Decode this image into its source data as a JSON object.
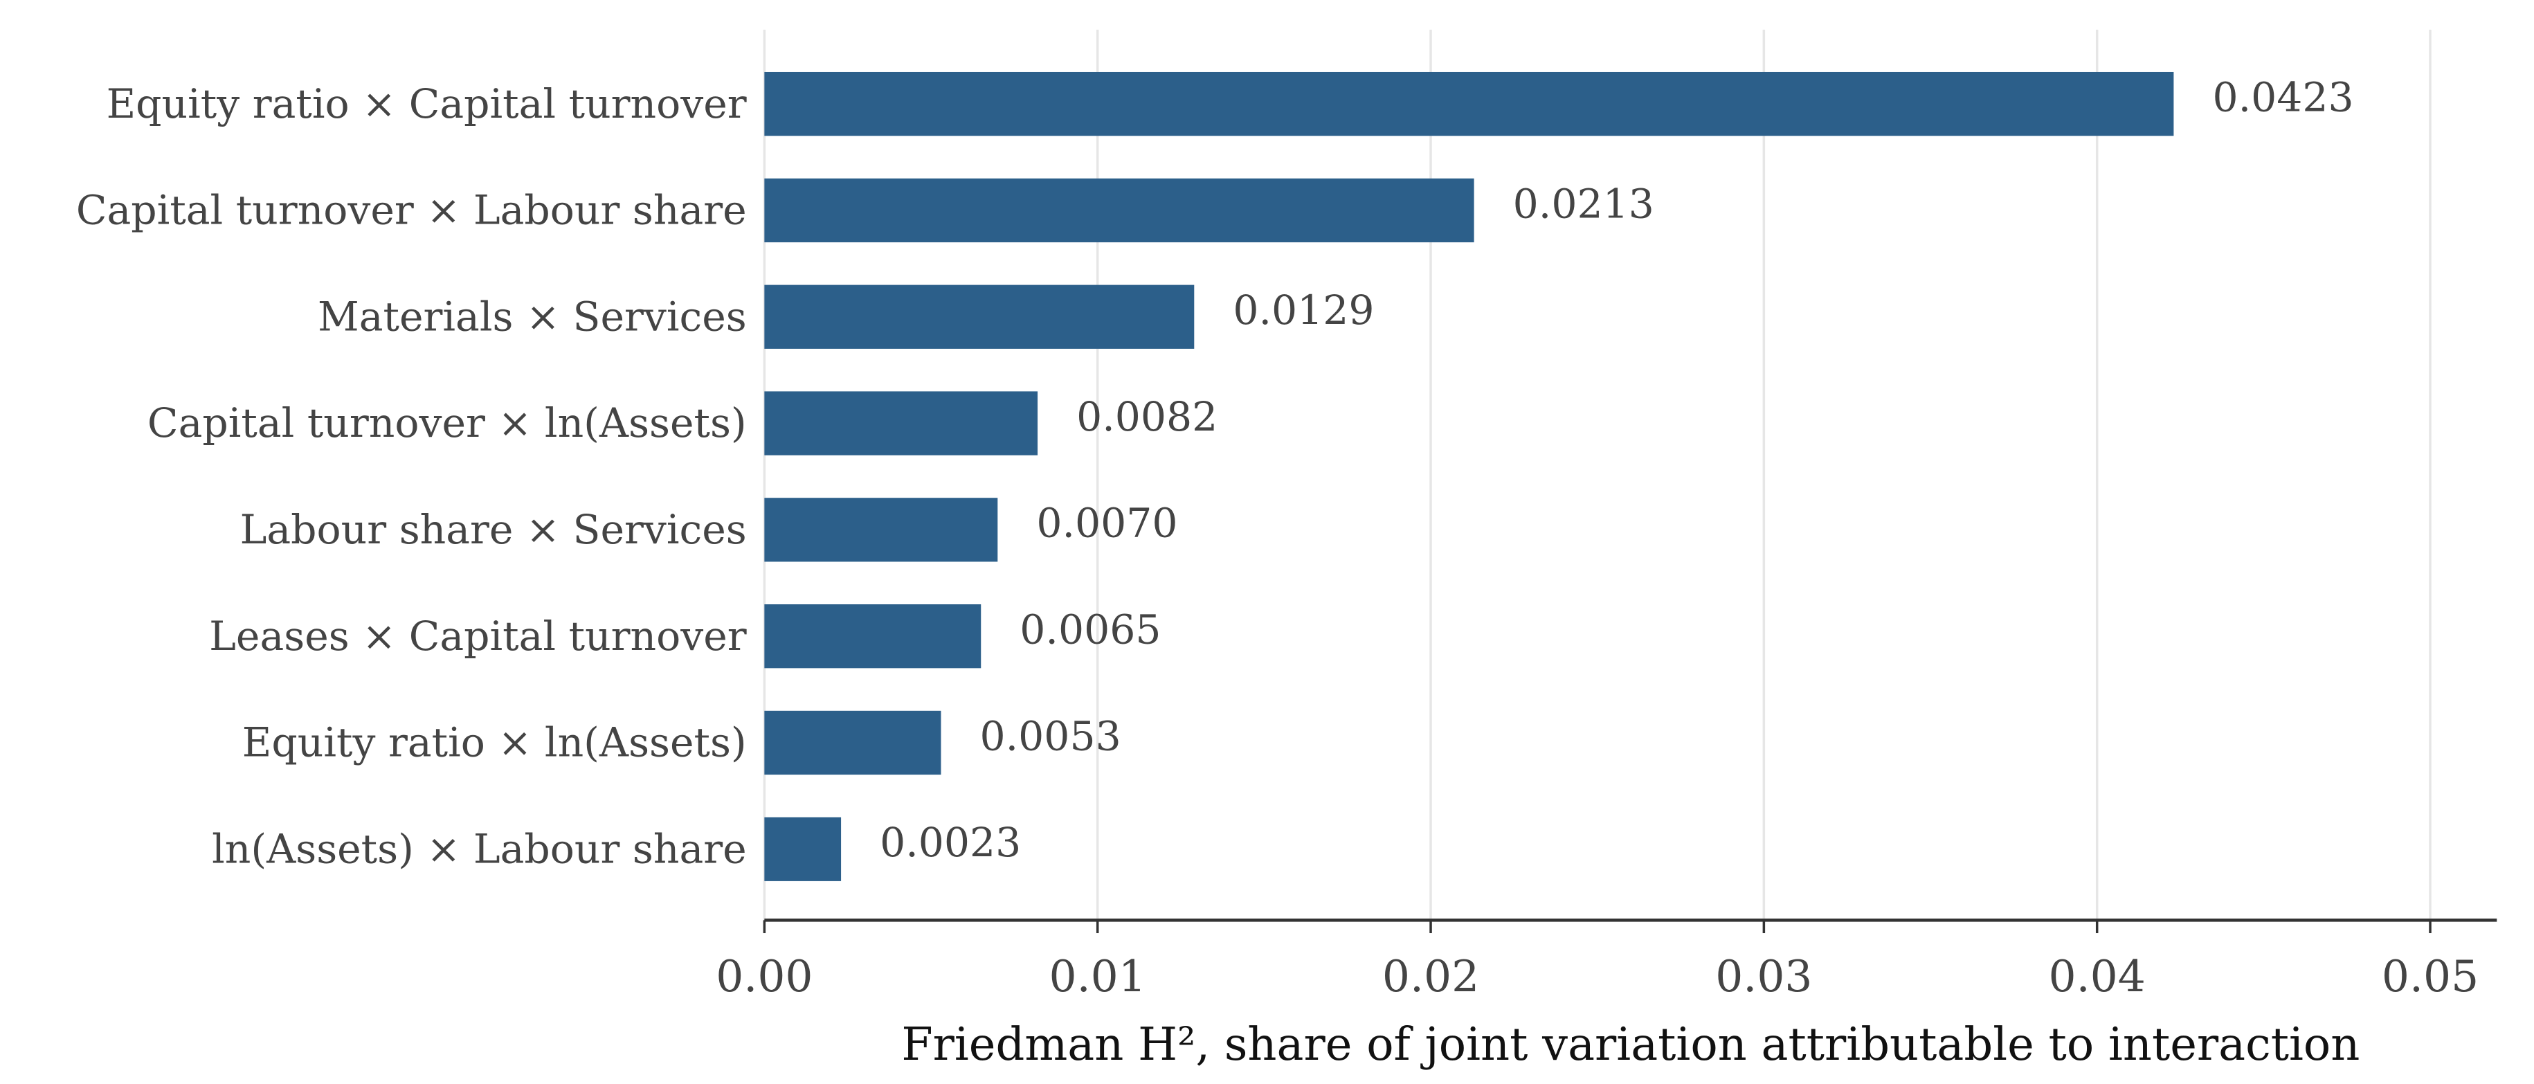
{
  "chart_data": {
    "type": "barh",
    "xlabel": "Friedman H², share of joint variation attributable to interaction",
    "categories": [
      "Equity ratio × Capital turnover",
      "Capital turnover × Labour share",
      "Materials × Services",
      "Capital turnover × ln(Assets)",
      "Labour share × Services",
      "Leases × Capital turnover",
      "Equity ratio × ln(Assets)",
      "ln(Assets) × Labour share"
    ],
    "values": [
      0.0423,
      0.0213,
      0.0129,
      0.0082,
      0.007,
      0.0065,
      0.0053,
      0.0023
    ],
    "value_labels": [
      "0.0423",
      "0.0213",
      "0.0129",
      "0.0082",
      "0.0070",
      "0.0065",
      "0.0053",
      "0.0023"
    ],
    "color": "#2c5f8a",
    "xlim": [
      0,
      0.052
    ],
    "xticks": [
      {
        "value": 0,
        "label": "0.00"
      },
      {
        "value": 0.01,
        "label": "0.01"
      },
      {
        "value": 0.02,
        "label": "0.02"
      },
      {
        "value": 0.03,
        "label": "0.03"
      },
      {
        "value": 0.04,
        "label": "0.04"
      },
      {
        "value": 0.05,
        "label": "0.05"
      }
    ],
    "grid": true
  }
}
